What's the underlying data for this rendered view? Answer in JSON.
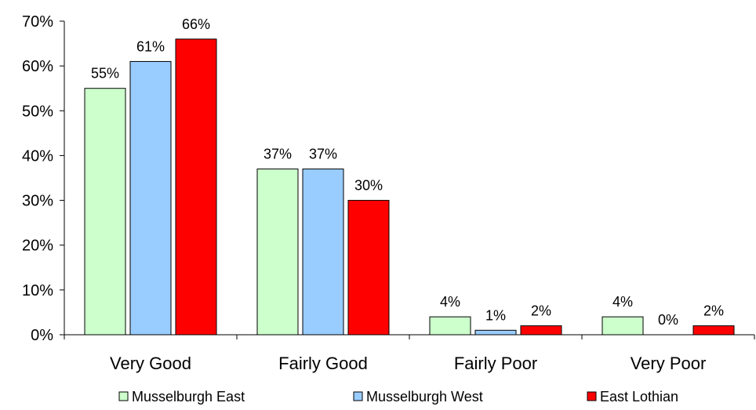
{
  "chart_data": {
    "type": "bar",
    "categories": [
      "Very Good",
      "Fairly Good",
      "Fairly Poor",
      "Very Poor"
    ],
    "series": [
      {
        "name": "Musselburgh East",
        "color": "#ccffcc",
        "values": [
          55,
          37,
          4,
          4
        ],
        "labels": [
          "55%",
          "37%",
          "4%",
          "4%"
        ]
      },
      {
        "name": "Musselburgh West",
        "color": "#99ccff",
        "values": [
          61,
          37,
          1,
          0
        ],
        "labels": [
          "61%",
          "37%",
          "1%",
          "0%"
        ]
      },
      {
        "name": "East Lothian",
        "color": "#ff0000",
        "values": [
          66,
          30,
          2,
          2
        ],
        "labels": [
          "66%",
          "30%",
          "2%",
          "2%"
        ]
      }
    ],
    "yticks": [
      "0%",
      "10%",
      "20%",
      "30%",
      "40%",
      "50%",
      "60%",
      "70%"
    ],
    "ylim": [
      0,
      70
    ],
    "grid": false,
    "legend_position": "bottom"
  }
}
